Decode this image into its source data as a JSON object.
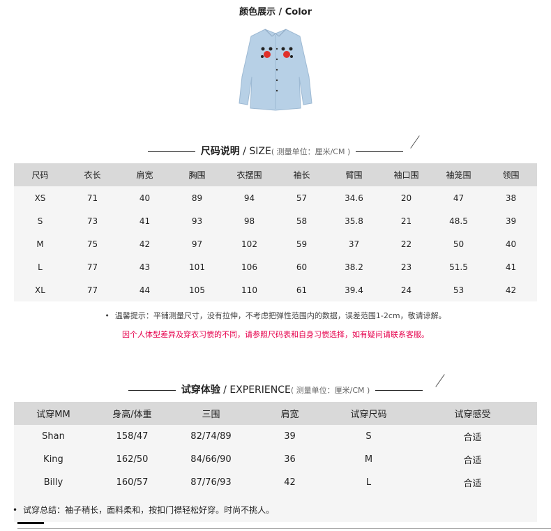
{
  "color_section": {
    "title": "颜色展示 / Color"
  },
  "size_section": {
    "title_cn": "尺码说明",
    "title_en": " / SIZE",
    "unit": "( 测量单位：厘米/CM )",
    "headers": [
      "尺码",
      "衣长",
      "肩宽",
      "胸围",
      "衣摆围",
      "袖长",
      "臂围",
      "袖口围",
      "袖笼围",
      "领围"
    ],
    "rows": [
      [
        "XS",
        "71",
        "40",
        "89",
        "94",
        "57",
        "34.6",
        "20",
        "47",
        "38"
      ],
      [
        "S",
        "73",
        "41",
        "93",
        "98",
        "58",
        "35.8",
        "21",
        "48.5",
        "39"
      ],
      [
        "M",
        "75",
        "42",
        "97",
        "102",
        "59",
        "37",
        "22",
        "50",
        "40"
      ],
      [
        "L",
        "77",
        "43",
        "101",
        "106",
        "60",
        "38.2",
        "23",
        "51.5",
        "41"
      ],
      [
        "XL",
        "77",
        "44",
        "105",
        "110",
        "61",
        "39.4",
        "24",
        "53",
        "42"
      ]
    ],
    "tip": "温馨提示：平铺测量尺寸，没有拉伸，不考虑把弹性范围内的数据，误差范围1-2cm，敬请谅解。",
    "warning": "因个人体型差异及穿衣习惯的不同，请参照尺码表和自身习惯选择，如有疑问请联系客服。",
    "warning_color": "#e6004c"
  },
  "experience_section": {
    "title_cn": "试穿体验",
    "title_en": " / EXPERIENCE",
    "unit": "( 测量单位：厘米/CM )",
    "headers": [
      "试穿MM",
      "身高/体重",
      "三围",
      "肩宽",
      "试穿尺码",
      "试穿感受"
    ],
    "rows": [
      [
        "Shan",
        "158/47",
        "82/74/89",
        "39",
        "S",
        "合适"
      ],
      [
        "King",
        "162/50",
        "84/66/90",
        "36",
        "M",
        "合适"
      ],
      [
        "Billy",
        "160/57",
        "87/76/93",
        "42",
        "L",
        "合适"
      ]
    ],
    "summary": "试穿总结：袖子稍长，面料柔和，按扣门襟轻松好穿。时尚不挑人。"
  }
}
